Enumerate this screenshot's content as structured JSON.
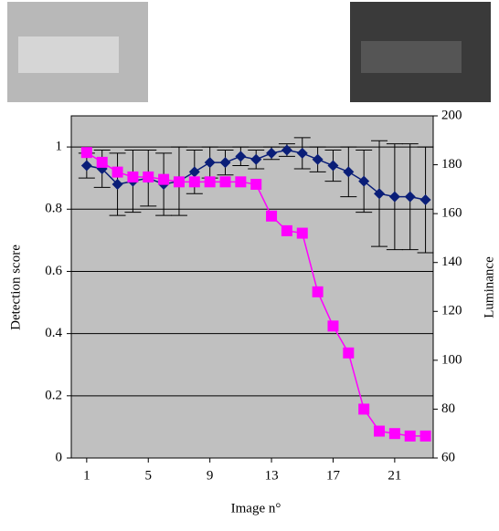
{
  "chart_data": {
    "type": "line",
    "x_label": "Image n°",
    "y_label": "Detection score",
    "y2_label": "Luminance",
    "x": [
      1,
      2,
      3,
      4,
      5,
      6,
      7,
      8,
      9,
      10,
      11,
      12,
      13,
      14,
      15,
      16,
      17,
      18,
      19,
      20,
      21,
      22,
      23
    ],
    "xlim": [
      0,
      23.5
    ],
    "xticks": [
      1,
      5,
      9,
      13,
      17,
      21
    ],
    "ylim": [
      0,
      1.1
    ],
    "yticks": [
      0,
      0.2,
      0.4,
      0.6,
      0.8,
      1
    ],
    "y2lim": [
      60,
      200
    ],
    "y2ticks": [
      60,
      80,
      100,
      120,
      140,
      160,
      180,
      200
    ],
    "grid": true,
    "series": [
      {
        "name": "Detection score",
        "color": "#0a1e78",
        "values": [
          0.94,
          0.93,
          0.88,
          0.89,
          0.9,
          0.88,
          0.89,
          0.92,
          0.95,
          0.95,
          0.97,
          0.96,
          0.98,
          0.99,
          0.98,
          0.96,
          0.94,
          0.92,
          0.89,
          0.85,
          0.84,
          0.84,
          0.83
        ],
        "errors": [
          0.04,
          0.06,
          0.1,
          0.1,
          0.09,
          0.1,
          0.11,
          0.07,
          0.05,
          0.04,
          0.03,
          0.03,
          0.02,
          0.02,
          0.05,
          0.04,
          0.05,
          0.08,
          0.1,
          0.17,
          0.17,
          0.17,
          0.17
        ]
      },
      {
        "name": "Luminance",
        "color": "#ff00ff",
        "axis": "y2",
        "values": [
          185,
          181,
          177,
          175,
          175,
          174,
          173,
          173,
          173,
          173,
          173,
          172,
          159,
          153,
          152,
          128,
          114,
          103,
          80,
          71,
          70,
          69,
          69
        ]
      }
    ]
  }
}
